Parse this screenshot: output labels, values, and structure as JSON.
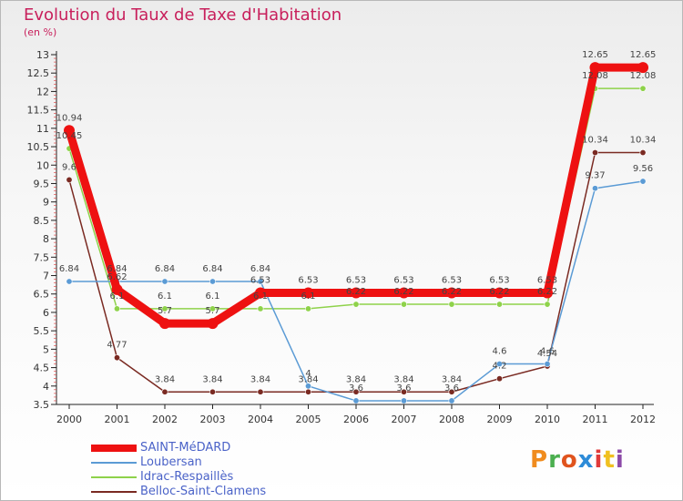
{
  "title": "Evolution du Taux de Taxe d'Habitation",
  "subtitle": "(en %)",
  "logo": {
    "text": "Proxiti",
    "letter_colors": [
      "#f08c1e",
      "#4caf50",
      "#e0541e",
      "#2d8bd8",
      "#e03a3a",
      "#f0c020",
      "#8c4aa8"
    ]
  },
  "chart_data": {
    "type": "line",
    "title": "Evolution du Taux de Taxe d'Habitation",
    "subtitle": "(en %)",
    "xlabel": "",
    "ylabel": "",
    "x": [
      "2000",
      "2001",
      "2002",
      "2003",
      "2004",
      "2005",
      "2006",
      "2007",
      "2008",
      "2009",
      "2010",
      "2011",
      "2012"
    ],
    "ylim": [
      3.5,
      13
    ],
    "y_ticks": [
      "3.5",
      "4",
      "4.5",
      "5",
      "5.5",
      "6",
      "6.5",
      "7",
      "7.5",
      "8",
      "8.5",
      "9",
      "9.5",
      "10",
      "10.5",
      "11",
      "11.5",
      "12",
      "12.5",
      "13"
    ],
    "grid": false,
    "legend_position": "bottom-left",
    "series": [
      {
        "name": "SAINT-MéDARD",
        "color": "#ee1111",
        "values": [
          10.94,
          6.62,
          5.7,
          5.7,
          6.53,
          6.53,
          6.53,
          6.53,
          6.53,
          6.53,
          6.53,
          12.65,
          12.65
        ],
        "labels": [
          "10.94",
          "6.62",
          "5.7",
          "5.7",
          "6.53",
          "6.53",
          "6.53",
          "6.53",
          "6.53",
          "6.53",
          "6.53",
          "12.65",
          "12.65"
        ]
      },
      {
        "name": "Loubersan",
        "color": "#5b9bd5",
        "values": [
          6.84,
          6.84,
          6.84,
          6.84,
          6.84,
          4,
          3.6,
          3.6,
          3.6,
          4.6,
          4.6,
          9.37,
          9.56
        ],
        "labels": [
          "6.84",
          "6.84",
          "6.84",
          "6.84",
          "6.84",
          "4",
          "3.6",
          "3.6",
          "3.6",
          "4.6",
          "4.6",
          "9.37",
          "9.56"
        ]
      },
      {
        "name": "Idrac-Respaillès",
        "color": "#8ed24a",
        "values": [
          10.45,
          6.1,
          6.1,
          6.1,
          6.1,
          6.1,
          6.22,
          6.22,
          6.22,
          6.22,
          6.22,
          12.08,
          12.08
        ],
        "labels": [
          "10.45",
          "6.1",
          "6.1",
          "6.1",
          "6.1",
          "6.1",
          "6.22",
          "6.22",
          "6.22",
          "6.22",
          "6.22",
          "12.08",
          "12.08"
        ]
      },
      {
        "name": "Belloc-Saint-Clamens",
        "color": "#7a2a22",
        "values": [
          9.6,
          4.77,
          3.84,
          3.84,
          3.84,
          3.84,
          3.84,
          3.84,
          3.84,
          4.2,
          4.54,
          10.34,
          10.34
        ],
        "labels": [
          "9.6",
          "4.77",
          "3.84",
          "3.84",
          "3.84",
          "3.84",
          "3.84",
          "3.84",
          "3.84",
          "4.2",
          "4.54",
          "10.34",
          "10.34"
        ]
      }
    ]
  }
}
